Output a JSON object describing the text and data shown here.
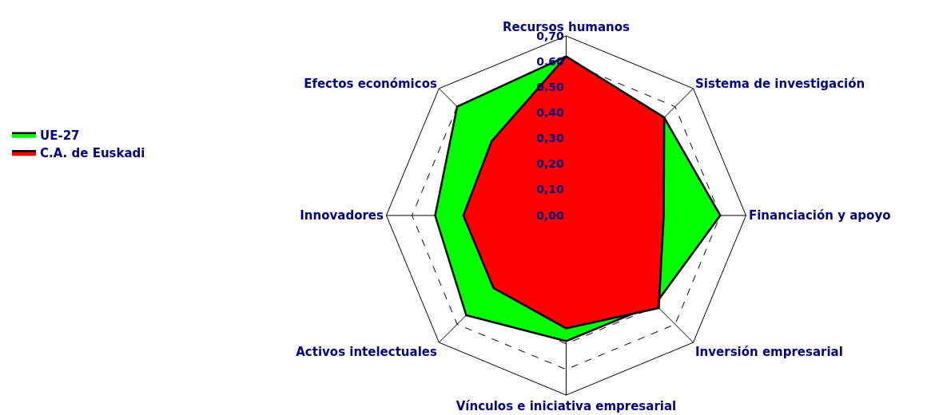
{
  "chart_data": {
    "type": "radar",
    "categories": [
      "Recursos humanos",
      "Sistema de investigación",
      "Financiación y apoyo",
      "Inversión empresarial",
      "Vínculos e iniciativa empresarial",
      "Activos intelectuales",
      "Innovadores",
      "Efectos económicos"
    ],
    "series": [
      {
        "name": "UE-27",
        "color": "#00ff00",
        "values": [
          0.62,
          0.54,
          0.6,
          0.49,
          0.49,
          0.55,
          0.51,
          0.6
        ]
      },
      {
        "name": "C.A. de Euskadi",
        "color": "#ff0000",
        "values": [
          0.62,
          0.54,
          0.38,
          0.51,
          0.44,
          0.4,
          0.4,
          0.41
        ]
      }
    ],
    "ylim": [
      0,
      0.7
    ],
    "yticks": [
      {
        "value": 0,
        "label": "0,00"
      },
      {
        "value": 0.1,
        "label": "0,10"
      },
      {
        "value": 0.2,
        "label": "0,20"
      },
      {
        "value": 0.3,
        "label": "0,30"
      },
      {
        "value": 0.4,
        "label": "0,40"
      },
      {
        "value": 0.5,
        "label": "0,50"
      },
      {
        "value": 0.6,
        "label": "0,60"
      },
      {
        "value": 0.7,
        "label": "0,70"
      }
    ],
    "grid": true,
    "legend": "left",
    "line_style": "solid",
    "marker": "none"
  }
}
